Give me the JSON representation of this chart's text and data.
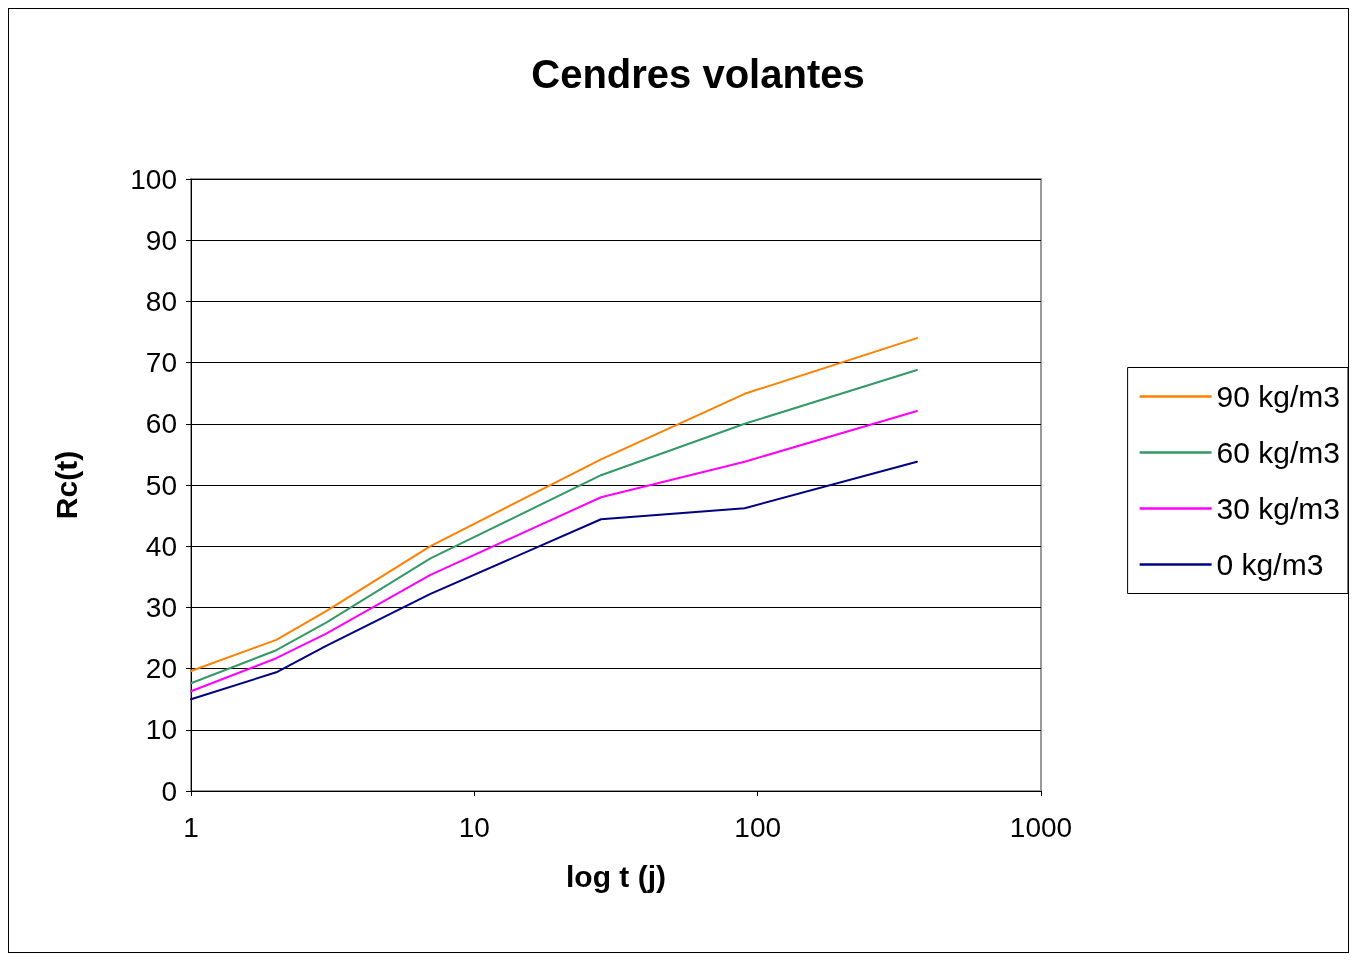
{
  "chart_data": {
    "type": "line",
    "title": "Cendres volantes",
    "xlabel": "log t (j)",
    "ylabel": "Rc(t)",
    "log": "x",
    "xlim": [
      1,
      1000
    ],
    "xticks": [
      1,
      10,
      100,
      1000
    ],
    "ylim": [
      0,
      100
    ],
    "yticks": [
      0,
      10,
      20,
      30,
      40,
      50,
      60,
      70,
      80,
      90,
      100
    ],
    "grid": "y",
    "legend": "right",
    "marker": "none",
    "line_style": "solid",
    "x": [
      1,
      2,
      3,
      7,
      28,
      90,
      365
    ],
    "series": [
      {
        "name": "90 kg/m3",
        "color": "#ff8000",
        "values": [
          19.6,
          24.7,
          29.4,
          40,
          54.2,
          64.9,
          74
        ]
      },
      {
        "name": "60 kg/m3",
        "color": "#339966",
        "values": [
          17.6,
          23,
          27.5,
          38,
          51.6,
          60,
          68.8
        ]
      },
      {
        "name": "30 kg/m3",
        "color": "#ff00ff",
        "values": [
          16.3,
          21.7,
          25.7,
          35.3,
          48,
          53.8,
          62.1
        ]
      },
      {
        "name": "0 kg/m3",
        "color": "#000080",
        "values": [
          15,
          19.4,
          23.7,
          32.2,
          44.4,
          46.2,
          53.8
        ]
      }
    ]
  }
}
